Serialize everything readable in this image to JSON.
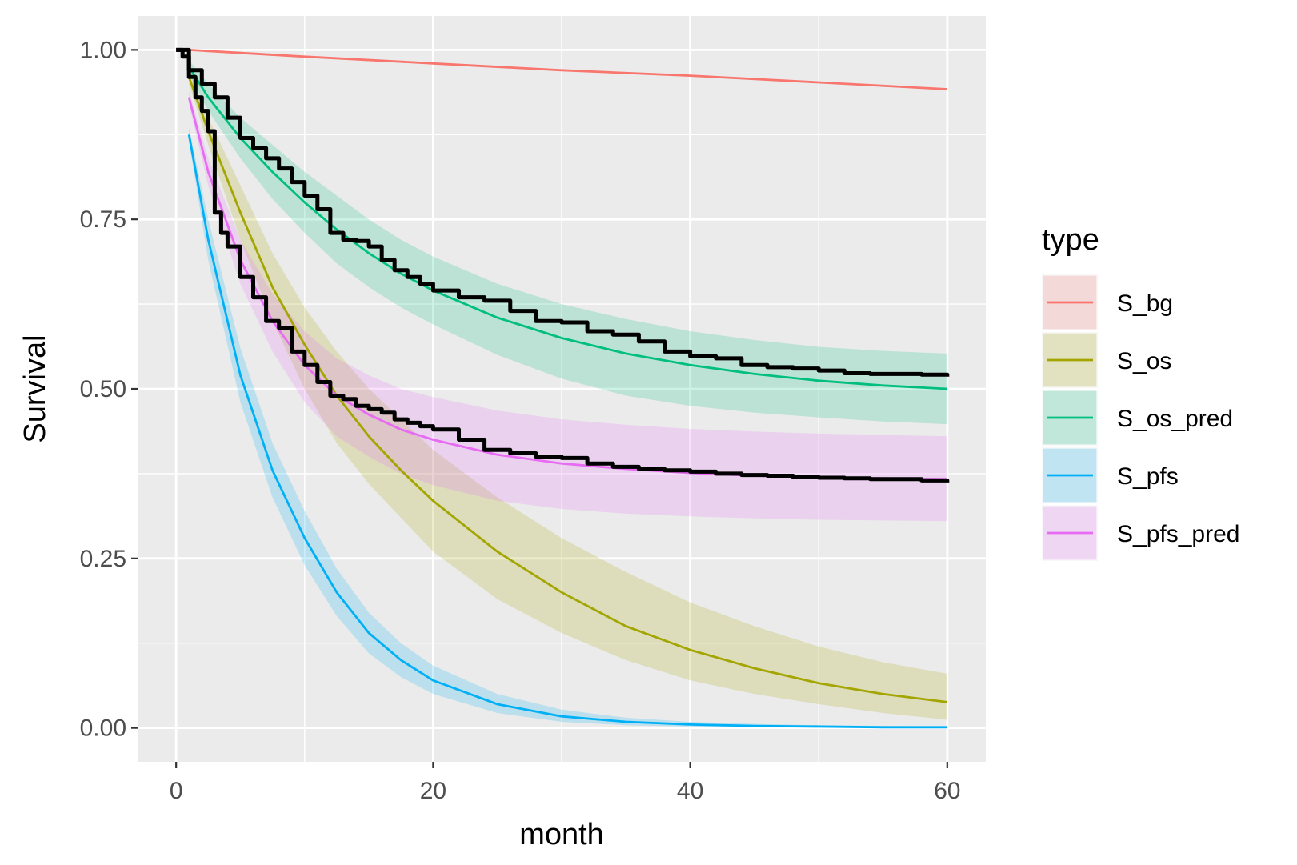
{
  "chart_data": {
    "type": "line",
    "title": "",
    "xlabel": "month",
    "ylabel": "Survival",
    "xlim": [
      -3,
      63
    ],
    "ylim": [
      -0.05,
      1.05
    ],
    "x_ticks": [
      0,
      20,
      40,
      60
    ],
    "x_tick_labels": [
      "0",
      "20",
      "40",
      "60"
    ],
    "y_ticks": [
      0,
      0.25,
      0.5,
      0.75,
      1
    ],
    "y_tick_labels": [
      "0.00",
      "0.25",
      "0.50",
      "0.75",
      "1.00"
    ],
    "grid": true,
    "legend": {
      "title": "type",
      "position": "right"
    },
    "series": [
      {
        "name": "S_bg",
        "color": "#F8766D",
        "x": [
          1,
          10,
          20,
          30,
          40,
          50,
          60
        ],
        "y": [
          1.0,
          0.99,
          0.98,
          0.97,
          0.962,
          0.952,
          0.942
        ],
        "lower": [
          0.999,
          0.989,
          0.979,
          0.969,
          0.961,
          0.951,
          0.941
        ],
        "upper": [
          1.0,
          0.991,
          0.981,
          0.971,
          0.963,
          0.953,
          0.943
        ]
      },
      {
        "name": "S_os",
        "color": "#A3A500",
        "x": [
          1,
          2.5,
          5,
          7.5,
          10,
          12.5,
          15,
          17.5,
          20,
          25,
          30,
          35,
          40,
          45,
          50,
          55,
          60
        ],
        "y": [
          0.96,
          0.88,
          0.76,
          0.65,
          0.565,
          0.49,
          0.43,
          0.38,
          0.335,
          0.26,
          0.2,
          0.15,
          0.115,
          0.088,
          0.066,
          0.05,
          0.038
        ],
        "lower": [
          0.95,
          0.86,
          0.72,
          0.6,
          0.5,
          0.42,
          0.36,
          0.31,
          0.26,
          0.19,
          0.14,
          0.1,
          0.07,
          0.05,
          0.035,
          0.022,
          0.012
        ],
        "upper": [
          0.97,
          0.9,
          0.8,
          0.7,
          0.62,
          0.555,
          0.5,
          0.455,
          0.41,
          0.34,
          0.28,
          0.23,
          0.185,
          0.15,
          0.12,
          0.097,
          0.08
        ]
      },
      {
        "name": "S_os_pred",
        "color": "#00BF7D",
        "x": [
          1,
          2.5,
          5,
          7.5,
          10,
          12.5,
          15,
          17.5,
          20,
          25,
          30,
          35,
          40,
          45,
          50,
          55,
          60
        ],
        "y": [
          0.975,
          0.93,
          0.87,
          0.82,
          0.775,
          0.735,
          0.7,
          0.67,
          0.645,
          0.605,
          0.575,
          0.552,
          0.535,
          0.522,
          0.512,
          0.505,
          0.5
        ],
        "lower": [
          0.965,
          0.91,
          0.84,
          0.78,
          0.73,
          0.685,
          0.65,
          0.62,
          0.595,
          0.55,
          0.515,
          0.49,
          0.475,
          0.465,
          0.458,
          0.452,
          0.448
        ],
        "upper": [
          0.985,
          0.95,
          0.9,
          0.86,
          0.82,
          0.785,
          0.75,
          0.72,
          0.695,
          0.655,
          0.625,
          0.603,
          0.585,
          0.572,
          0.562,
          0.556,
          0.552
        ]
      },
      {
        "name": "S_pfs",
        "color": "#00B0F6",
        "x": [
          1,
          2.5,
          5,
          7.5,
          10,
          12.5,
          15,
          17.5,
          20,
          25,
          30,
          35,
          40,
          45,
          50,
          55,
          60
        ],
        "y": [
          0.875,
          0.72,
          0.52,
          0.38,
          0.28,
          0.2,
          0.14,
          0.1,
          0.07,
          0.035,
          0.017,
          0.009,
          0.005,
          0.003,
          0.002,
          0.001,
          0.001
        ],
        "lower": [
          0.865,
          0.69,
          0.48,
          0.34,
          0.24,
          0.165,
          0.11,
          0.075,
          0.05,
          0.022,
          0.009,
          0.004,
          0.002,
          0.001,
          0.0,
          0.0,
          0.0
        ],
        "upper": [
          0.885,
          0.75,
          0.56,
          0.42,
          0.32,
          0.235,
          0.17,
          0.125,
          0.092,
          0.05,
          0.027,
          0.015,
          0.009,
          0.006,
          0.004,
          0.003,
          0.002
        ]
      },
      {
        "name": "S_pfs_pred",
        "color": "#E76BF3",
        "x": [
          1,
          2.5,
          5,
          7.5,
          10,
          12.5,
          15,
          17.5,
          20,
          25,
          30,
          35,
          40,
          45,
          50,
          55,
          60
        ],
        "y": [
          0.93,
          0.82,
          0.69,
          0.6,
          0.535,
          0.49,
          0.462,
          0.44,
          0.425,
          0.403,
          0.39,
          0.382,
          0.376,
          0.372,
          0.37,
          0.368,
          0.367
        ],
        "lower": [
          0.92,
          0.8,
          0.655,
          0.555,
          0.48,
          0.43,
          0.4,
          0.375,
          0.358,
          0.335,
          0.323,
          0.316,
          0.312,
          0.309,
          0.307,
          0.306,
          0.305
        ],
        "upper": [
          0.94,
          0.84,
          0.72,
          0.64,
          0.585,
          0.545,
          0.52,
          0.5,
          0.488,
          0.468,
          0.455,
          0.447,
          0.441,
          0.437,
          0.434,
          0.432,
          0.43
        ]
      }
    ],
    "km_curves": [
      {
        "x": [
          0,
          1,
          2,
          3,
          4,
          5,
          6,
          7,
          8,
          9,
          10,
          11,
          12,
          13,
          14,
          15,
          16,
          17,
          18,
          19,
          20,
          22,
          24,
          26,
          28,
          30,
          32,
          34,
          36,
          38,
          40,
          42,
          44,
          46,
          48,
          50,
          52,
          54,
          56,
          58,
          60
        ],
        "y": [
          1.0,
          0.97,
          0.95,
          0.93,
          0.9,
          0.87,
          0.855,
          0.84,
          0.825,
          0.805,
          0.785,
          0.765,
          0.73,
          0.72,
          0.718,
          0.71,
          0.69,
          0.675,
          0.665,
          0.655,
          0.645,
          0.635,
          0.63,
          0.615,
          0.6,
          0.598,
          0.585,
          0.58,
          0.57,
          0.555,
          0.548,
          0.545,
          0.535,
          0.532,
          0.53,
          0.527,
          0.523,
          0.522,
          0.522,
          0.521,
          0.518
        ]
      },
      {
        "x": [
          0,
          0.5,
          1,
          1.5,
          2,
          2.5,
          3,
          3.5,
          4,
          5,
          6,
          7,
          8,
          9,
          10,
          11,
          12,
          13,
          14,
          15,
          16,
          17,
          18,
          19,
          20,
          22,
          24,
          26,
          28,
          30,
          32,
          34,
          36,
          38,
          40,
          42,
          44,
          46,
          48,
          50,
          52,
          54,
          56,
          58,
          60
        ],
        "y": [
          1.0,
          0.99,
          0.96,
          0.93,
          0.91,
          0.88,
          0.76,
          0.73,
          0.71,
          0.665,
          0.635,
          0.6,
          0.59,
          0.555,
          0.535,
          0.51,
          0.49,
          0.485,
          0.475,
          0.47,
          0.465,
          0.455,
          0.45,
          0.445,
          0.44,
          0.425,
          0.41,
          0.405,
          0.4,
          0.398,
          0.39,
          0.385,
          0.382,
          0.38,
          0.378,
          0.375,
          0.373,
          0.372,
          0.37,
          0.369,
          0.368,
          0.367,
          0.367,
          0.365,
          0.362
        ]
      }
    ]
  }
}
